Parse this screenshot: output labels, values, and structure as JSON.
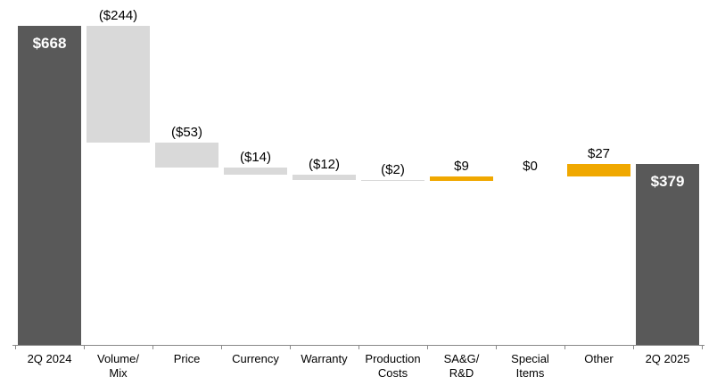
{
  "chart_data": {
    "type": "bar",
    "subtype": "waterfall",
    "title": "",
    "xlabel": "",
    "ylabel": "",
    "grid": false,
    "legend": false,
    "ylim": [
      0,
      700
    ],
    "categories": [
      "2Q 2024",
      "Volume/\nMix",
      "Price",
      "Currency",
      "Warranty",
      "Production\nCosts",
      "SA&G/\nR&D",
      "Special\nItems",
      "Other",
      "2Q 2025"
    ],
    "values": [
      668,
      -244,
      -53,
      -14,
      -12,
      -2,
      9,
      0,
      27,
      379
    ],
    "kinds": [
      "total",
      "decrease",
      "decrease",
      "decrease",
      "decrease",
      "decrease",
      "increase",
      "zero",
      "increase",
      "total"
    ],
    "data_labels": [
      "$668",
      "($244)",
      "($53)",
      "($14)",
      "($12)",
      "($2)",
      "$9",
      "$0",
      "$27",
      "$379"
    ],
    "label_placement": [
      "inside-top",
      "above",
      "above",
      "above",
      "above",
      "above",
      "above",
      "above",
      "above",
      "inside-top"
    ],
    "colors": {
      "total": "#595959",
      "decrease": "#D9D9D9",
      "increase": "#F0A800",
      "label_text": "#000000",
      "total_label_text": "#FFFFFF",
      "axis": "#898989"
    }
  }
}
